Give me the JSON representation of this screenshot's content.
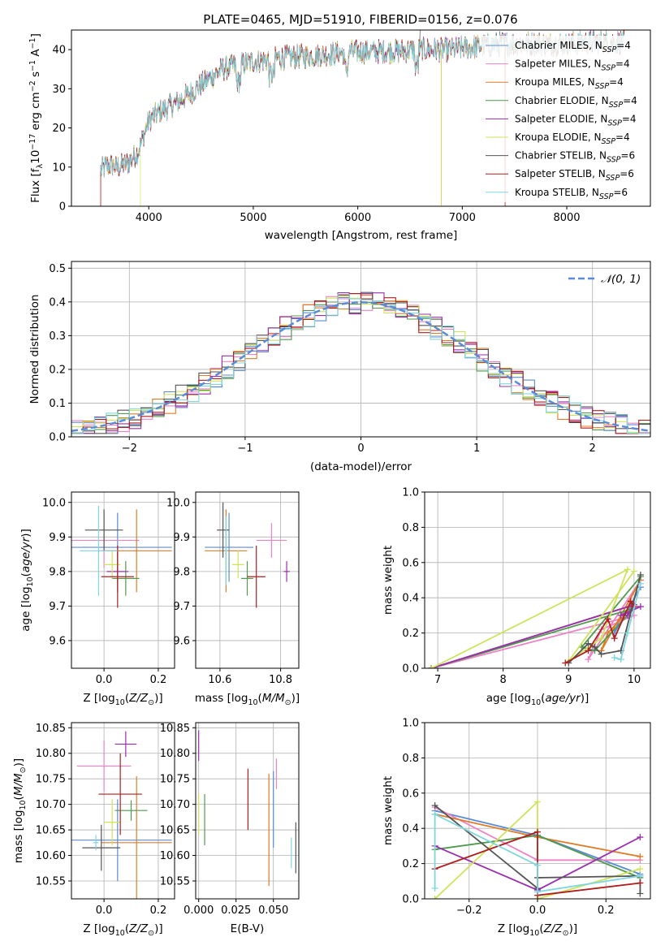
{
  "colors": [
    "#5b8bd6",
    "#ee82c4",
    "#e07b28",
    "#4f9a4f",
    "#9b2fb0",
    "#cfe35a",
    "#555555",
    "#b01e1e",
    "#7fd6e0"
  ],
  "figure_title": "PLATE=0465, MJD=51910, FIBERID=0156, z=0.076",
  "chart_data": [
    {
      "id": "spectrum",
      "type": "line",
      "title": "PLATE=0465, MJD=51910, FIBERID=0156, z=0.076",
      "xlabel": "wavelength [Angstrom, rest frame]",
      "ylabel": "Flux [f_λ 10^-17 erg cm^-2 s^-1 A^-1]",
      "xlim": [
        3260,
        8800
      ],
      "ylim": [
        0,
        45
      ],
      "xticks": [
        4000,
        5000,
        6000,
        7000,
        8000
      ],
      "yticks": [
        0,
        10,
        20,
        30,
        40
      ],
      "continuum": {
        "x": [
          3540,
          3600,
          3700,
          3800,
          3900,
          4000,
          4100,
          4300,
          4500,
          4700,
          5000,
          5300,
          5600,
          6000,
          6300,
          6600,
          6900,
          7200,
          7400,
          7700,
          8000,
          8300,
          8500
        ],
        "y": [
          9,
          10.5,
          10,
          11,
          14,
          22,
          24,
          27,
          31,
          35,
          37,
          38,
          38.5,
          39.5,
          39.5,
          40,
          40,
          41,
          41.5,
          41.5,
          41.5,
          42,
          42
        ]
      },
      "legend": [
        "Chabrier MILES, N_SSP=4",
        "Salpeter MILES, N_SSP=4",
        "Kroupa MILES, N_SSP=4",
        "Chabrier ELODIE, N_SSP=4",
        "Salpeter ELODIE, N_SSP=4",
        "Kroupa ELODIE, N_SSP=4",
        "Chabrier STELIB, N_SSP=6",
        "Salpeter STELIB, N_SSP=6",
        "Kroupa STELIB, N_SSP=6"
      ]
    },
    {
      "id": "residuals",
      "type": "line",
      "xlabel": "(data-model)/error",
      "ylabel": "Normed distribution",
      "xlim": [
        -2.5,
        2.5
      ],
      "ylim": [
        0,
        0.52
      ],
      "xticks": [
        -2,
        -1,
        0,
        1,
        2
      ],
      "yticks": [
        0.0,
        0.1,
        0.2,
        0.3,
        0.4,
        0.5
      ],
      "bin_width": 0.1,
      "legend_label": "𝒩(0, 1)"
    },
    {
      "id": "z-vs-age",
      "type": "scatter",
      "xlabel": "Z [log10(Z/Z⊙)]",
      "ylabel": "age  [log10(age/yr)]",
      "xlim": [
        -0.12,
        0.26
      ],
      "ylim": [
        9.52,
        10.03
      ],
      "xticks": [
        0.0,
        0.2
      ],
      "yticks": [
        9.6,
        9.7,
        9.8,
        9.9,
        10.0
      ],
      "points": [
        {
          "x": 0.05,
          "y": 9.87,
          "xerr": 0.2,
          "yerr": 0.1
        },
        {
          "x": 0.0,
          "y": 9.89,
          "xerr": 0.13,
          "yerr": 0.08
        },
        {
          "x": 0.12,
          "y": 9.86,
          "xerr": 0.13,
          "yerr": 0.12
        },
        {
          "x": 0.08,
          "y": 9.78,
          "xerr": 0.05,
          "yerr": 0.05
        },
        {
          "x": 0.05,
          "y": 9.8,
          "xerr": 0.04,
          "yerr": 0.06
        },
        {
          "x": 0.03,
          "y": 9.82,
          "xerr": 0.03,
          "yerr": 0.04
        },
        {
          "x": 0.0,
          "y": 9.92,
          "xerr": 0.07,
          "yerr": 0.06
        },
        {
          "x": 0.05,
          "y": 9.785,
          "xerr": 0.06,
          "yerr": 0.09
        },
        {
          "x": -0.02,
          "y": 9.86,
          "xerr": 0.07,
          "yerr": 0.13
        }
      ]
    },
    {
      "id": "mass-vs-age",
      "type": "scatter",
      "xlabel": "mass [log10(M/M⊙)]",
      "ylabel": "",
      "xlim": [
        10.52,
        10.86
      ],
      "ylim": [
        9.52,
        10.03
      ],
      "xticks": [
        10.6,
        10.8
      ],
      "yticks": [
        9.6,
        9.7,
        9.8,
        9.9,
        10.0
      ],
      "points": [
        {
          "x": 10.63,
          "y": 9.87,
          "xerr": 0.08,
          "yerr": 0.1
        },
        {
          "x": 10.77,
          "y": 9.89,
          "xerr": 0.05,
          "yerr": 0.05
        },
        {
          "x": 10.62,
          "y": 9.86,
          "xerr": 0.07,
          "yerr": 0.12
        },
        {
          "x": 10.69,
          "y": 9.78,
          "xerr": 0.02,
          "yerr": 0.05
        },
        {
          "x": 10.82,
          "y": 9.8,
          "xerr": 0.01,
          "yerr": 0.03
        },
        {
          "x": 10.66,
          "y": 9.82,
          "xerr": 0.02,
          "yerr": 0.04
        },
        {
          "x": 10.61,
          "y": 9.92,
          "xerr": 0.02,
          "yerr": 0.08
        },
        {
          "x": 10.72,
          "y": 9.785,
          "xerr": 0.03,
          "yerr": 0.09
        },
        {
          "x": 10.62,
          "y": 9.86,
          "xerr": 0.005,
          "yerr": 0.1
        }
      ]
    },
    {
      "id": "age-vs-weight",
      "type": "line",
      "xlabel": "age  [log10(age/yr)]",
      "ylabel": "mass weight",
      "xlim": [
        6.8,
        10.25
      ],
      "ylim": [
        0,
        1
      ],
      "xticks": [
        7,
        8,
        9,
        10
      ],
      "yticks": [
        0.0,
        0.2,
        0.4,
        0.6,
        0.8,
        1.0
      ],
      "series": [
        {
          "x": [
            6.9,
            10.0,
            9.8,
            9.7,
            10.1
          ],
          "y": [
            0,
            0.36,
            0.3,
            0.2,
            0.46
          ]
        },
        {
          "x": [
            6.9,
            10.0,
            9.5,
            9.3,
            10.1
          ],
          "y": [
            0,
            0.3,
            0.22,
            0.05,
            0.5
          ]
        },
        {
          "x": [
            6.9,
            10.0,
            9.6,
            9.5,
            10.1
          ],
          "y": [
            0,
            0.36,
            0.2,
            0.1,
            0.5
          ]
        },
        {
          "x": [
            6.9,
            10.0,
            9.4,
            9.2,
            10.1
          ],
          "y": [
            0,
            0.34,
            0.1,
            0.12,
            0.52
          ]
        },
        {
          "x": [
            6.9,
            10.0,
            9.9,
            9.8,
            10.1
          ],
          "y": [
            0,
            0.36,
            0.3,
            0.3,
            0.35
          ]
        },
        {
          "x": [
            6.9,
            9.9,
            9.5,
            9.0,
            10.0
          ],
          "y": [
            0,
            0.56,
            0.17,
            0.04,
            0.55
          ]
        },
        {
          "x": [
            9.0,
            9.3,
            9.4,
            9.5,
            9.8,
            10.1
          ],
          "y": [
            0.03,
            0.14,
            0.12,
            0.08,
            0.1,
            0.53
          ]
        },
        {
          "x": [
            8.95,
            9.3,
            9.6,
            9.7,
            9.95,
            10.0
          ],
          "y": [
            0.03,
            0.1,
            0.28,
            0.17,
            0.38,
            0.35
          ]
        },
        {
          "x": [
            9.7,
            9.8,
            9.9,
            10.1
          ],
          "y": [
            0.06,
            0.05,
            0.2,
            0.48
          ]
        }
      ]
    },
    {
      "id": "z-vs-mass",
      "type": "scatter",
      "xlabel": "Z [log10(Z/Z⊙)]",
      "ylabel": "mass [log10(M/M⊙)]",
      "xlim": [
        -0.12,
        0.26
      ],
      "ylim": [
        10.515,
        10.86
      ],
      "xticks": [
        0.0,
        0.2
      ],
      "yticks": [
        10.55,
        10.6,
        10.65,
        10.7,
        10.75,
        10.8,
        10.85
      ],
      "points": [
        {
          "x": 0.05,
          "y": 10.63,
          "xerr": 0.2,
          "yerr": 0.08
        },
        {
          "x": 0.0,
          "y": 10.775,
          "xerr": 0.1,
          "yerr": 0.05
        },
        {
          "x": 0.12,
          "y": 10.625,
          "xerr": 0.13,
          "yerr": 0.13
        },
        {
          "x": 0.1,
          "y": 10.688,
          "xerr": 0.06,
          "yerr": 0.02
        },
        {
          "x": 0.08,
          "y": 10.818,
          "xerr": 0.04,
          "yerr": 0.025
        },
        {
          "x": 0.03,
          "y": 10.665,
          "xerr": 0.03,
          "yerr": 0.045
        },
        {
          "x": -0.01,
          "y": 10.615,
          "xerr": 0.07,
          "yerr": 0.045
        },
        {
          "x": 0.06,
          "y": 10.72,
          "xerr": 0.08,
          "yerr": 0.08
        },
        {
          "x": -0.03,
          "y": 10.625,
          "xerr": 0.01,
          "yerr": 0.015
        }
      ]
    },
    {
      "id": "ebv-vs-mass",
      "type": "scatter",
      "xlabel": "E(B-V)",
      "ylabel": "",
      "xlim": [
        -0.002,
        0.067
      ],
      "ylim": [
        10.515,
        10.86
      ],
      "xticks": [
        0.0,
        0.025,
        0.05
      ],
      "yticks": [
        10.55,
        10.6,
        10.65,
        10.7,
        10.75,
        10.8,
        10.85
      ],
      "points": [
        {
          "x": 0.05,
          "y": 10.69,
          "yerr": 0.075
        },
        {
          "x": 0.052,
          "y": 10.76,
          "yerr": 0.03
        },
        {
          "x": 0.047,
          "y": 10.65,
          "yerr": 0.11
        },
        {
          "x": 0.004,
          "y": 10.67,
          "yerr": 0.05
        },
        {
          "x": 0.0,
          "y": 10.815,
          "yerr": 0.03
        },
        {
          "x": 0.0,
          "y": 10.68,
          "yerr": 0.04
        },
        {
          "x": 0.065,
          "y": 10.615,
          "yerr": 0.05
        },
        {
          "x": 0.033,
          "y": 10.71,
          "yerr": 0.06
        },
        {
          "x": 0.062,
          "y": 10.605,
          "yerr": 0.03
        }
      ]
    },
    {
      "id": "zmet-vs-weight",
      "type": "line",
      "xlabel": "Z [log10(Z/Z⊙)]",
      "ylabel": "mass weight",
      "xlim": [
        -0.33,
        0.33
      ],
      "ylim": [
        0,
        1
      ],
      "xticks": [
        -0.2,
        0.0,
        0.2
      ],
      "yticks": [
        0.0,
        0.2,
        0.4,
        0.6,
        0.8,
        1.0
      ],
      "series": [
        {
          "x": [
            -0.3,
            0.0,
            0.3
          ],
          "y": [
            0.5,
            0.36,
            0.14
          ]
        },
        {
          "x": [
            -0.3,
            0.0,
            0.3
          ],
          "y": [
            0.52,
            0.22,
            0.22
          ]
        },
        {
          "x": [
            -0.3,
            0.0,
            0.3
          ],
          "y": [
            0.48,
            0.35,
            0.24
          ]
        },
        {
          "x": [
            -0.3,
            0.0,
            0.3
          ],
          "y": [
            0.28,
            0.36,
            0.12
          ]
        },
        {
          "x": [
            -0.3,
            0.0,
            0.3
          ],
          "y": [
            0.3,
            0.05,
            0.35
          ]
        },
        {
          "x": [
            -0.3,
            0.0,
            0.0,
            0.3
          ],
          "y": [
            0.0,
            0.55,
            0.0,
            0.17
          ]
        },
        {
          "x": [
            -0.3,
            0.0,
            0.0,
            0.3,
            0.3
          ],
          "y": [
            0.53,
            0.06,
            0.12,
            0.13,
            0.03
          ]
        },
        {
          "x": [
            -0.3,
            0.0,
            0.0,
            0.3
          ],
          "y": [
            0.17,
            0.38,
            0.02,
            0.09
          ]
        },
        {
          "x": [
            -0.3,
            -0.3,
            0.0,
            0.0,
            0.3
          ],
          "y": [
            0.06,
            0.48,
            0.19,
            0.04,
            0.13
          ]
        }
      ]
    }
  ]
}
